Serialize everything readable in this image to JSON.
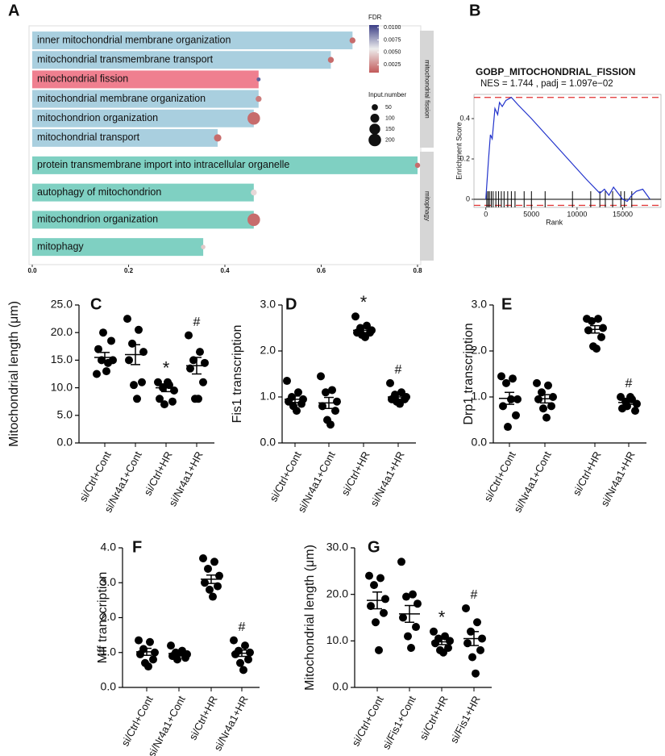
{
  "chart_data": [
    {
      "type": "hbar",
      "panel": "A",
      "xlim": [
        0,
        0.8
      ],
      "xticks": [
        {
          "value": 0,
          "label": "0.0"
        },
        0.2,
        0.4,
        0.6,
        0.8
      ],
      "series": [
        {
          "name": "mitochondrial fission",
          "categories": [
            "inner mitochondrial membrane organization",
            "mitochondrial transmembrane transport",
            "mitochondrial fission",
            "mitochondrial membrane organization",
            "mitochondrion organization",
            "mitochondrial transport"
          ],
          "values": [
            0.665,
            0.62,
            0.47,
            0.47,
            0.46,
            0.385
          ],
          "colors": [
            "#a9cfdf",
            "#a9cfdf",
            "#ef7f8f",
            "#a9cfdf",
            "#a9cfdf",
            "#a9cfdf"
          ],
          "fdr": [
            0.0015,
            0.0015,
            0.0095,
            0.002,
            0.0015,
            0.0015
          ],
          "input_number": [
            45,
            45,
            20,
            45,
            200,
            70
          ]
        },
        {
          "name": "mitophagy",
          "categories": [
            "protein transmembrane import into intracellular organelle",
            "autophagy of mitochondrion",
            "mitochondrion organization",
            "mitophagy"
          ],
          "values": [
            0.8,
            0.46,
            0.46,
            0.355
          ],
          "colors": [
            "#7fd0c2",
            "#7fd0c2",
            "#7fd0c2",
            "#7fd0c2"
          ],
          "fdr": [
            0.0015,
            0.005,
            0.0015,
            0.0045
          ],
          "input_number": [
            35,
            45,
            200,
            25
          ]
        }
      ],
      "fdr_legend": {
        "title": "FDR",
        "lim": [
          0.0009,
          0.0105
        ],
        "colors": [
          "#c25a5a",
          "#ededed",
          "#3a3d86"
        ],
        "ticks": [
          {
            "value": 0.01,
            "label": "0.0100"
          },
          0.0075,
          {
            "value": 0.005,
            "label": "0.0050"
          },
          0.0025
        ]
      },
      "size_legend": {
        "title": "Input.number",
        "ticks": [
          50,
          100,
          150,
          200
        ]
      }
    },
    {
      "type": "gsea",
      "panel": "B",
      "title": "GOBP_MITOCHONDRIAL_FISSION",
      "subtitle": "NES = 1.744 , padj = 1.097e−02",
      "x_label": "Rank",
      "y_label": "Enrichment Score",
      "color": "#2233cc",
      "dashed_color": "#e03030",
      "xlim": [
        -1300,
        19200
      ],
      "ylim": [
        -0.04,
        0.52
      ],
      "xticks": [
        0,
        5000,
        10000,
        15000
      ],
      "yticks": [
        0,
        0.2,
        0.4
      ],
      "x": [
        0,
        300,
        500,
        700,
        1000,
        1300,
        1500,
        1800,
        2200,
        2800,
        3500,
        5000,
        7000,
        9000,
        11000,
        12500,
        13000,
        13500,
        14000,
        14500,
        15000,
        15500,
        16000,
        16500,
        17200,
        18000
      ],
      "values": [
        0,
        0.2,
        0.32,
        0.3,
        0.45,
        0.42,
        0.48,
        0.46,
        0.49,
        0.505,
        0.47,
        0.4,
        0.3,
        0.2,
        0.1,
        0.03,
        0.05,
        0.02,
        0.06,
        0.03,
        0,
        -0.01,
        0.02,
        0.04,
        0.05,
        0
      ],
      "hits": [
        100,
        250,
        400,
        600,
        800,
        1100,
        1400,
        1700,
        2000,
        2400,
        2800,
        3200,
        4200,
        5000,
        6500,
        9500,
        11500,
        12500,
        13100,
        13900,
        14800,
        15200,
        16000
      ],
      "dashed": [
        0.505,
        -0.03
      ]
    },
    {
      "type": "dot",
      "panel": "C",
      "y_label": "Mitochondrial length (μm)",
      "ylim": [
        0,
        25
      ],
      "yticks": [
        {
          "value": 0,
          "label": "0.0"
        },
        {
          "value": 5,
          "label": "5.0"
        },
        {
          "value": 10,
          "label": "10.0"
        },
        {
          "value": 15,
          "label": "15.0"
        },
        {
          "value": 20,
          "label": "20.0"
        },
        {
          "value": 25,
          "label": "25.0"
        }
      ],
      "categories": [
        "si/Ctrl+Cont",
        "si/Nr4a1+Cont",
        "si/Ctrl+HR",
        "si/Nr4a1+HR"
      ],
      "values": [
        [
          12.5,
          14.5,
          15,
          15,
          17,
          18.5,
          20,
          13
        ],
        [
          22.5,
          20.5,
          18,
          16.5,
          15,
          11,
          10.5,
          8
        ],
        [
          11,
          10.5,
          10,
          9.5,
          8,
          7.5,
          7,
          11
        ],
        [
          19.5,
          16.5,
          15,
          14.5,
          13.5,
          11,
          8,
          8
        ]
      ],
      "means": [
        15.5,
        16,
        10,
        14
      ],
      "sems": [
        0.9,
        1.8,
        0.7,
        1.5
      ],
      "annotations": [
        {
          "category": "si/Ctrl+HR",
          "text": "*"
        },
        {
          "category": "si/Nr4a1+HR",
          "text": "#"
        }
      ]
    },
    {
      "type": "dot",
      "panel": "D",
      "y_label": "Fis1 transcription",
      "ylim": [
        0,
        3
      ],
      "yticks": [
        {
          "value": 0,
          "label": "0.0"
        },
        {
          "value": 1,
          "label": "1.0"
        },
        {
          "value": 2,
          "label": "2.0"
        },
        {
          "value": 3,
          "label": "3.0"
        }
      ],
      "categories": [
        "si/Ctrl+Cont",
        "si/Nr4a1+Cont",
        "si/Ctrl+HR",
        "si/Nr4a1+HR"
      ],
      "values": [
        [
          1.35,
          1.1,
          1.0,
          0.95,
          0.9,
          0.85,
          0.8,
          0.7
        ],
        [
          1.45,
          1.15,
          1.1,
          0.9,
          0.8,
          0.7,
          0.5,
          0.4
        ],
        [
          2.75,
          2.55,
          2.5,
          2.45,
          2.4,
          2.4,
          2.35,
          2.3
        ],
        [
          1.3,
          1.1,
          1.05,
          1.0,
          0.95,
          0.95,
          0.9,
          0.85
        ]
      ],
      "means": [
        0.95,
        0.87,
        2.45,
        1.0
      ],
      "sems": [
        0.07,
        0.12,
        0.05,
        0.05
      ],
      "annotations": [
        {
          "category": "si/Ctrl+HR",
          "text": "*"
        },
        {
          "category": "si/Nr4a1+HR",
          "text": "#"
        }
      ]
    },
    {
      "type": "dot",
      "panel": "E",
      "y_label": "Drp1 transcription",
      "ylim": [
        0,
        3
      ],
      "yticks": [
        {
          "value": 0,
          "label": "0.0"
        },
        {
          "value": 1,
          "label": "1.0"
        },
        {
          "value": 2,
          "label": "2.0"
        },
        {
          "value": 3,
          "label": "3.0"
        }
      ],
      "categories": [
        "si/Ctrl+Cont",
        "si/Nr4a1+Cont",
        "si/Ctrl+HR",
        "si/Nr4a1+HR"
      ],
      "values": [
        [
          1.45,
          1.4,
          1.3,
          0.95,
          0.8,
          0.6,
          0.35,
          0.95
        ],
        [
          1.3,
          1.25,
          1.1,
          1.0,
          0.95,
          0.8,
          0.75,
          0.55
        ],
        [
          2.7,
          2.7,
          2.65,
          2.5,
          2.45,
          2.3,
          2.1,
          2.05
        ],
        [
          1.0,
          0.95,
          0.9,
          0.85,
          0.75,
          0.7,
          0.8,
          1.0
        ]
      ],
      "means": [
        0.97,
        0.96,
        2.47,
        0.88
      ],
      "sems": [
        0.13,
        0.09,
        0.08,
        0.04
      ],
      "annotations": [
        {
          "category": "si/Nr4a1+HR",
          "text": "#"
        }
      ]
    },
    {
      "type": "dot",
      "panel": "F",
      "y_label": "Mff transcription",
      "ylim": [
        0,
        4
      ],
      "yticks": [
        {
          "value": 0,
          "label": "0.0"
        },
        {
          "value": 1,
          "label": "1.0"
        },
        {
          "value": 2,
          "label": "2.0"
        },
        {
          "value": 3,
          "label": "3.0"
        },
        {
          "value": 4,
          "label": "4.0"
        }
      ],
      "categories": [
        "si/Ctrl+Cont",
        "si/Nr4a1+Cont",
        "si/Ctrl+HR",
        "si/Nr4a1+HR"
      ],
      "values": [
        [
          1.35,
          1.3,
          1.1,
          1.0,
          0.95,
          0.8,
          0.7,
          0.6
        ],
        [
          1.2,
          1.05,
          1.0,
          0.95,
          0.9,
          0.85,
          0.8,
          1.0
        ],
        [
          3.7,
          3.6,
          3.4,
          3.2,
          3.0,
          2.9,
          2.8,
          2.6
        ],
        [
          1.35,
          1.2,
          1.05,
          1.0,
          0.95,
          0.8,
          0.7,
          0.5
        ]
      ],
      "means": [
        1.02,
        0.97,
        3.1,
        0.98
      ],
      "sems": [
        0.1,
        0.05,
        0.12,
        0.09
      ],
      "annotations": [
        {
          "category": "si/Nr4a1+HR",
          "text": "#"
        }
      ]
    },
    {
      "type": "dot",
      "panel": "G",
      "y_label": "Mitochondrial length (μm)",
      "ylim": [
        0,
        30
      ],
      "yticks": [
        {
          "value": 0,
          "label": "0.0"
        },
        {
          "value": 10,
          "label": "10.0"
        },
        {
          "value": 20,
          "label": "20.0"
        },
        {
          "value": 30,
          "label": "30.0"
        }
      ],
      "categories": [
        "si/Ctrl+Cont",
        "si/Fis1+Cont",
        "si/Ctrl+HR",
        "si/Fis1+HR"
      ],
      "values": [
        [
          24,
          23.5,
          22,
          19,
          17.5,
          16,
          14,
          8
        ],
        [
          27,
          20,
          19.5,
          18,
          15,
          13,
          11,
          8.5
        ],
        [
          12,
          11,
          10.5,
          10,
          9.5,
          8.5,
          8,
          7.5
        ],
        [
          17,
          14,
          12,
          10.5,
          9.5,
          8,
          6.5,
          3
        ]
      ],
      "means": [
        18.7,
        15.8,
        9.8,
        10.5
      ],
      "sems": [
        1.8,
        1.8,
        0.6,
        1.5
      ],
      "annotations": [
        {
          "category": "si/Ctrl+HR",
          "text": "*"
        },
        {
          "category": "si/Fis1+HR",
          "text": "#"
        }
      ]
    }
  ]
}
